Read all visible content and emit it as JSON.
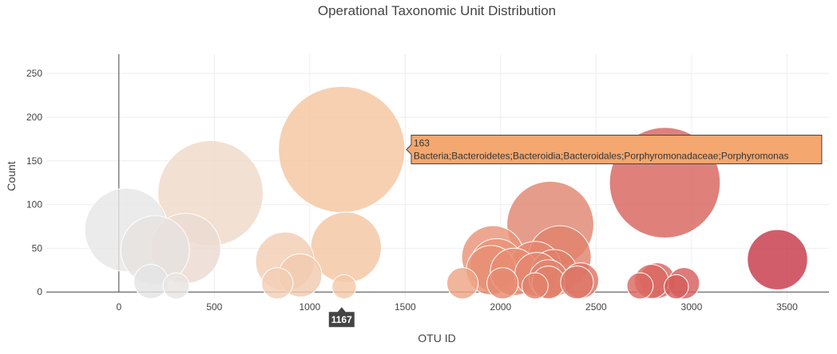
{
  "chart_data": {
    "type": "scatter",
    "title": "Operational Taxonomic Unit Distribution",
    "xlabel": "OTU ID",
    "ylabel": "Count",
    "xlim": [
      -380,
      3720
    ],
    "ylim": [
      -8,
      272
    ],
    "x_ticks": [
      0,
      500,
      1000,
      1500,
      2000,
      2500,
      3000,
      3500
    ],
    "y_ticks": [
      0,
      50,
      100,
      150,
      200,
      250
    ],
    "x_tick_labels": [
      "0",
      "500",
      "1000",
      "1500",
      "2000",
      "2500",
      "3000",
      "3500"
    ],
    "y_tick_labels": [
      "0",
      "50",
      "100",
      "150",
      "200",
      "250"
    ],
    "grid": true,
    "legend": "none",
    "colorscale": [
      "#e3e3e3",
      "#f1ddcf",
      "#f5c6a0",
      "#e8957a",
      "#e07567",
      "#d8645e",
      "#c4364a"
    ],
    "points": [
      {
        "x": 40,
        "y": 71,
        "c": "#e6e6e6"
      },
      {
        "x": 190,
        "y": 48,
        "c": "#e7e2df"
      },
      {
        "x": 350,
        "y": 50,
        "c": "#ebdbd1"
      },
      {
        "x": 480,
        "y": 113,
        "c": "#efd9c9"
      },
      {
        "x": 168,
        "y": 12,
        "c": "#e4e4e4"
      },
      {
        "x": 300,
        "y": 7,
        "c": "#e8e4e2"
      },
      {
        "x": 870,
        "y": 35,
        "c": "#f2cdb3"
      },
      {
        "x": 950,
        "y": 19,
        "c": "#f2cbb0"
      },
      {
        "x": 830,
        "y": 10,
        "c": "#f3ceb4"
      },
      {
        "x": 1167,
        "y": 163,
        "c": "#f5c6a0"
      },
      {
        "x": 1190,
        "y": 51,
        "c": "#f4c6a2"
      },
      {
        "x": 1180,
        "y": 6,
        "c": "#f4c9a8"
      },
      {
        "x": 1800,
        "y": 10,
        "c": "#eea586"
      },
      {
        "x": 1960,
        "y": 40,
        "c": "#e99478"
      },
      {
        "x": 1980,
        "y": 30,
        "c": "#e99378"
      },
      {
        "x": 1950,
        "y": 25,
        "c": "#e89075"
      },
      {
        "x": 2010,
        "y": 10,
        "c": "#e58b72"
      },
      {
        "x": 2070,
        "y": 23,
        "c": "#e88c72"
      },
      {
        "x": 2180,
        "y": 28,
        "c": "#e58870"
      },
      {
        "x": 2190,
        "y": 20,
        "c": "#e5866f"
      },
      {
        "x": 2180,
        "y": 7,
        "c": "#e2836c"
      },
      {
        "x": 2250,
        "y": 15,
        "c": "#e3826c"
      },
      {
        "x": 2250,
        "y": 11,
        "c": "#e2806a"
      },
      {
        "x": 2260,
        "y": 77,
        "c": "#e08670"
      },
      {
        "x": 2310,
        "y": 40,
        "c": "#e1826b"
      },
      {
        "x": 2280,
        "y": 22,
        "c": "#e07f69"
      },
      {
        "x": 2400,
        "y": 11,
        "c": "#dd7666"
      },
      {
        "x": 2420,
        "y": 13,
        "c": "#dd7564"
      },
      {
        "x": 2730,
        "y": 7,
        "c": "#da6962"
      },
      {
        "x": 2790,
        "y": 12,
        "c": "#d96861"
      },
      {
        "x": 2820,
        "y": 13,
        "c": "#d96660"
      },
      {
        "x": 2860,
        "y": 125,
        "c": "#d8645e"
      },
      {
        "x": 2960,
        "y": 10,
        "c": "#d65f5d"
      },
      {
        "x": 2920,
        "y": 6,
        "c": "#d65e5c"
      },
      {
        "x": 3450,
        "y": 37,
        "c": "#c7394b"
      }
    ],
    "hover": {
      "value": "163",
      "label": "Bacteria;Bacteroidetes;Bacteroidia;Bacteroidales;Porphyromonadaceae;Porphyromonas",
      "x_value": "1167",
      "x": 1167,
      "y": 163,
      "color": "#f4a76f"
    }
  }
}
